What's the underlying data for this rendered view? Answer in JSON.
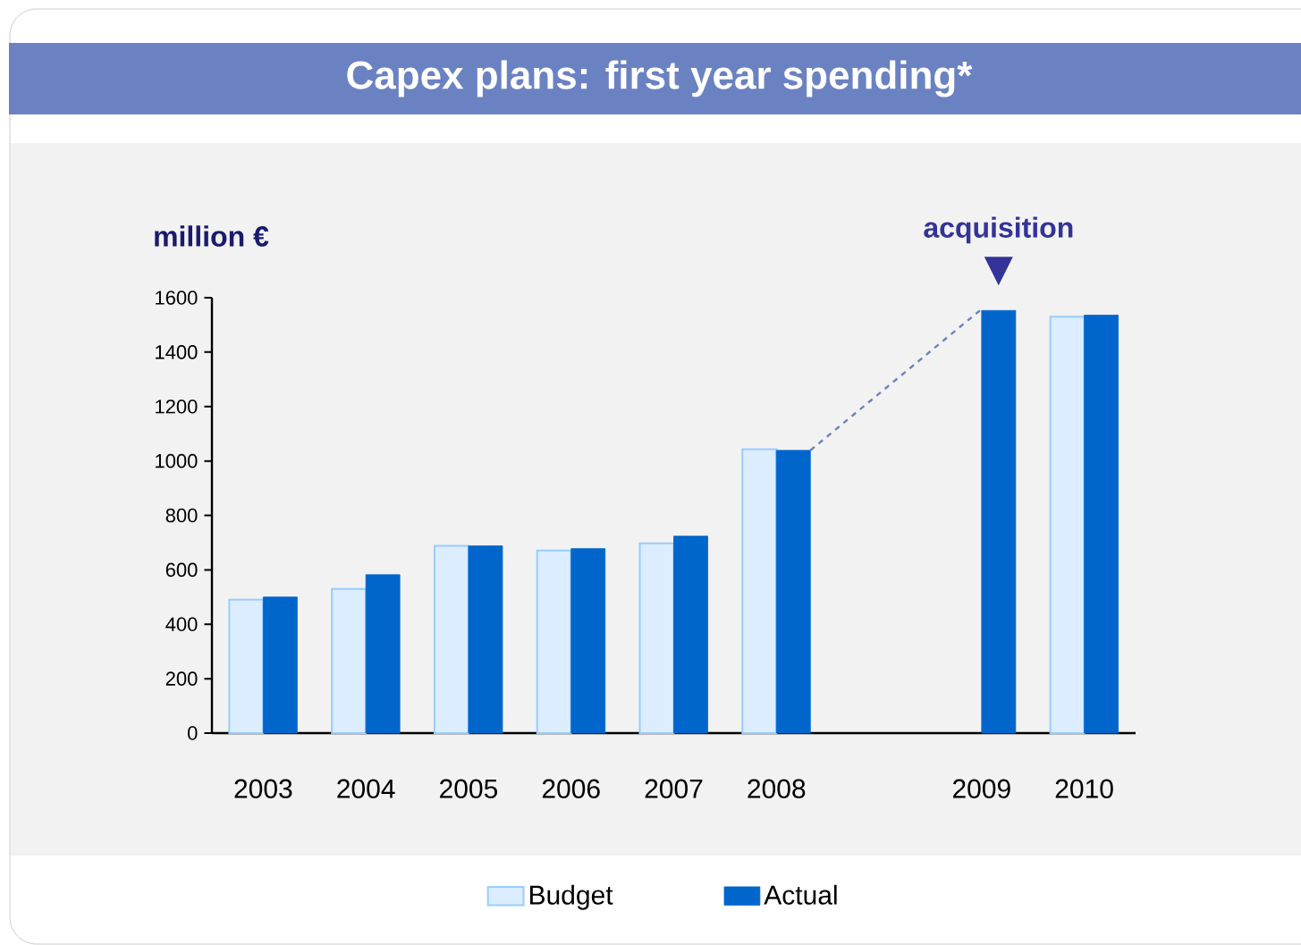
{
  "chart_data": {
    "type": "bar",
    "title": "Capex plans: first year spending*",
    "ylabel": "million €",
    "categories": [
      "2003",
      "2004",
      "2005",
      "2006",
      "2007",
      "2008",
      null,
      "2009",
      "2010"
    ],
    "series": [
      {
        "name": "Budget",
        "color": "#99ccff",
        "values": [
          490,
          530,
          688,
          671,
          697,
          1043,
          null,
          null,
          1530
        ]
      },
      {
        "name": "Actual",
        "color": "#0066cc",
        "values": [
          500,
          582,
          688,
          678,
          724,
          1039,
          null,
          1553,
          1536
        ]
      }
    ],
    "ylim": [
      0,
      1600
    ],
    "yticks": [
      0,
      200,
      400,
      600,
      800,
      1000,
      1200,
      1400,
      1600
    ],
    "legend": "bottom",
    "annotations": [
      {
        "text": "acquisition",
        "x": "2009",
        "y": 1553
      }
    ]
  }
}
